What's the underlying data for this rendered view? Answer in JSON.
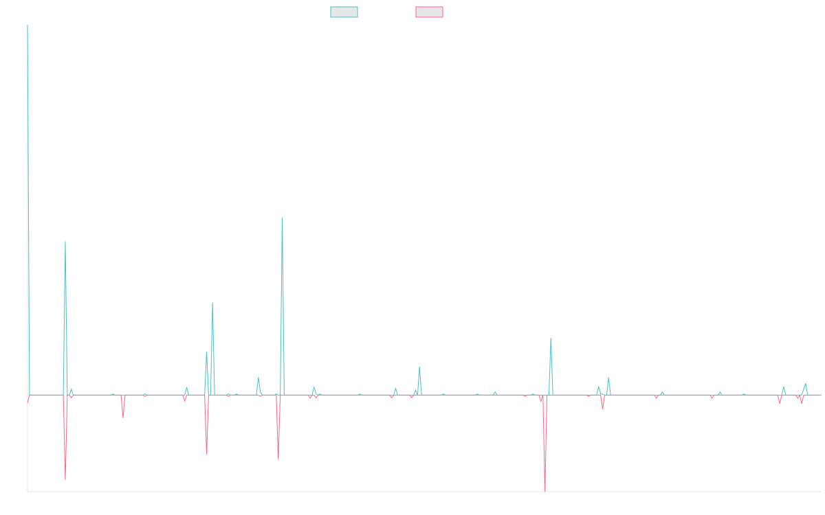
{
  "chart_data": {
    "type": "line",
    "title": "",
    "xlabel": "",
    "ylabel": "",
    "grid": false,
    "legend_position": "top-center",
    "ylim": [
      -24.5,
      94
    ],
    "series": [
      {
        "name": "",
        "color": "#4bc0c0",
        "legend_fill": "#e6e6e6",
        "values": [
          94,
          0,
          0,
          0,
          0,
          0,
          0,
          0,
          0,
          0,
          0,
          0,
          0,
          0,
          0,
          0,
          0,
          0,
          0,
          39,
          0,
          0,
          1.5,
          0,
          0,
          0,
          0,
          0,
          0,
          0,
          0,
          0,
          0,
          0,
          0,
          0,
          0,
          0,
          0,
          0,
          0,
          0,
          0,
          0.3,
          0,
          0,
          0,
          0,
          0,
          0,
          0,
          0,
          0,
          0,
          0,
          0,
          0,
          0,
          0,
          0.3,
          0,
          0,
          0,
          0,
          0,
          0,
          0,
          0,
          0,
          0,
          0,
          0,
          0,
          0,
          0,
          0,
          0,
          0,
          0,
          0,
          2,
          0,
          0,
          0,
          0,
          0,
          0,
          0,
          0,
          0,
          11,
          0,
          0,
          23.5,
          0,
          0,
          0,
          0,
          0,
          0,
          0,
          0.3,
          0,
          0,
          0,
          0.3,
          0,
          0,
          0,
          0,
          0,
          0,
          0,
          0,
          0,
          0,
          4.5,
          0.8,
          0,
          0,
          0,
          0,
          0,
          0,
          0,
          0.3,
          0,
          0,
          45,
          0,
          0,
          0,
          0,
          0,
          0,
          0,
          0,
          0,
          0,
          0,
          0,
          0,
          0,
          0,
          2,
          0.3,
          0,
          0.3,
          0,
          0,
          0,
          0,
          0,
          0,
          0,
          0,
          0,
          0,
          0,
          0,
          0,
          0,
          0,
          0,
          0,
          0,
          0,
          0.3,
          0,
          0,
          0,
          0,
          0,
          0,
          0,
          0,
          0,
          0,
          0,
          0,
          0,
          0,
          0,
          0,
          0,
          1.7,
          0,
          0,
          0,
          0,
          0,
          0,
          0,
          0,
          0,
          1.3,
          0,
          7.2,
          0,
          0,
          0,
          0,
          0,
          0,
          0,
          0,
          0,
          0,
          0,
          0.3,
          0,
          0,
          0,
          0,
          0,
          0,
          0,
          0,
          0,
          0,
          0,
          0,
          0,
          0,
          0,
          0,
          0.3,
          0,
          0,
          0,
          0,
          0,
          0,
          0,
          0,
          0.8,
          0,
          0,
          0,
          0,
          0,
          0,
          0,
          0,
          0,
          0,
          0,
          0,
          0,
          0,
          0,
          0,
          0,
          0,
          0.3,
          0,
          0,
          0,
          0,
          0,
          0,
          0,
          0,
          14.5,
          0,
          0,
          0,
          0,
          0,
          0,
          0,
          0,
          0,
          0,
          0,
          0,
          0,
          0,
          0,
          0,
          0,
          0,
          0,
          0,
          0,
          0,
          0,
          2.2,
          0.3,
          0.3,
          0,
          0,
          4.5,
          0,
          0,
          0,
          0,
          0,
          0,
          0,
          0,
          0,
          0,
          0,
          0,
          0,
          0,
          0,
          0,
          0,
          0,
          0,
          0,
          0,
          0,
          0,
          0,
          0,
          0,
          0.8,
          0,
          0,
          0,
          0,
          0,
          0,
          0,
          0,
          0,
          0,
          0,
          0,
          0,
          0,
          0,
          0,
          0,
          0,
          0,
          0,
          0,
          0,
          0,
          0,
          0,
          0,
          0,
          0,
          0.8,
          0,
          0,
          0,
          0,
          0,
          0,
          0,
          0,
          0,
          0,
          0,
          0.3,
          0,
          0,
          0,
          0,
          0,
          0,
          0,
          0,
          0,
          0,
          0,
          0,
          0,
          0,
          0,
          0,
          0,
          0,
          0,
          2.2,
          0,
          0,
          0,
          0,
          0,
          0,
          0,
          0,
          0,
          1.5,
          3,
          0,
          0,
          0,
          0,
          0,
          0,
          0,
          0
        ]
      },
      {
        "name": "",
        "color": "#ff6384",
        "legend_fill": "#e6e6e6",
        "values": [
          -2,
          0,
          0,
          0,
          0,
          0,
          0,
          0,
          0,
          0,
          0,
          0,
          0,
          0,
          0,
          0,
          0,
          0,
          0,
          -21.5,
          0,
          0,
          -0.7,
          0,
          0,
          0,
          0,
          0,
          0,
          0,
          0,
          0,
          0,
          0,
          0,
          0,
          0,
          0,
          0,
          0,
          0,
          0,
          0,
          0,
          0,
          0,
          0,
          0,
          -5.8,
          0,
          0,
          0,
          0,
          0,
          0,
          0,
          0,
          0,
          0,
          -0.3,
          0,
          0,
          0,
          0,
          0,
          0,
          0,
          0,
          0,
          0,
          0,
          0,
          0,
          0,
          0,
          0,
          0,
          0,
          0,
          -1.5,
          0,
          0,
          0,
          0,
          0,
          0,
          0,
          0,
          0,
          0,
          -15,
          0,
          0,
          0,
          0,
          0,
          0,
          0,
          0,
          0,
          0,
          -0.3,
          0,
          0,
          0,
          0,
          0,
          0,
          0,
          0,
          0,
          0,
          0,
          0,
          0,
          0,
          0,
          -0.3,
          0,
          0,
          0,
          0,
          0,
          0,
          0,
          0,
          -16.3,
          0,
          0,
          0,
          0,
          0,
          0,
          0,
          0,
          0,
          0,
          0,
          0,
          0,
          0,
          0,
          -0.8,
          0,
          0,
          -0.7,
          0,
          0,
          0,
          0,
          0,
          0,
          0,
          0,
          0,
          0,
          0,
          0,
          0,
          0,
          0,
          0,
          0,
          0,
          0,
          0,
          0,
          0,
          0,
          0,
          0,
          0,
          0,
          0,
          0,
          0,
          0,
          0,
          0,
          0,
          0,
          0,
          0,
          -0.7,
          0,
          0,
          0,
          0,
          0,
          0,
          0,
          0,
          0,
          -0.7,
          0,
          0,
          0,
          0,
          0,
          0,
          0,
          0,
          0,
          0,
          0,
          0,
          0,
          0,
          0,
          0,
          0,
          0,
          0,
          0,
          0,
          0,
          0,
          0,
          0,
          0,
          0,
          0,
          0,
          0,
          0,
          0,
          0,
          0,
          0,
          0,
          0,
          0,
          0,
          0,
          0,
          0,
          0,
          0,
          0,
          0,
          0,
          0,
          0,
          0,
          0,
          0,
          0,
          0,
          0,
          0,
          -0.3,
          0,
          0,
          0,
          0,
          0,
          0,
          0,
          -1.6,
          0,
          -24.5,
          0,
          0,
          0,
          0,
          0,
          0,
          0,
          0,
          0,
          0,
          0,
          0,
          0,
          0,
          0,
          0,
          0,
          0,
          0,
          0,
          0,
          -0.3,
          0,
          0,
          0,
          0,
          0,
          0,
          -3.6,
          0,
          0,
          0,
          0,
          0,
          0,
          0,
          0,
          0,
          0,
          0,
          0,
          0,
          0,
          0,
          0,
          0,
          0,
          0,
          0,
          0,
          0,
          0,
          0,
          0,
          0,
          -0.8,
          0,
          0,
          0,
          0,
          0,
          0,
          0,
          0,
          0,
          0,
          0,
          0,
          0,
          0,
          0,
          0,
          0,
          0,
          0,
          0,
          0,
          0,
          0,
          0,
          0,
          0,
          0,
          -0.8,
          0,
          0,
          0,
          0,
          0,
          0,
          0,
          0,
          0,
          0,
          0,
          0,
          0,
          0,
          0,
          0,
          0,
          0,
          0,
          0,
          0,
          0,
          0,
          0,
          0,
          0,
          0,
          0,
          0,
          0,
          0,
          0,
          0,
          -2.2,
          0,
          0,
          0,
          0,
          0,
          0,
          0,
          0,
          -0.8,
          0,
          -2.2,
          0,
          0,
          0,
          0,
          0,
          0,
          0,
          0,
          0
        ]
      }
    ]
  }
}
